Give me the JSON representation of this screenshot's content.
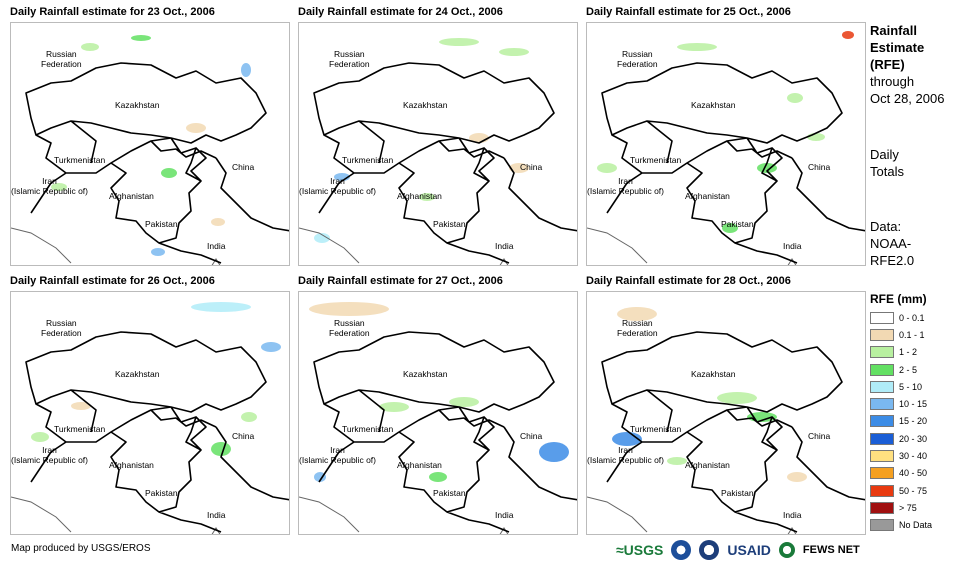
{
  "panels": [
    {
      "title": "Daily Rainfall estimate for 23 Oct., 2006"
    },
    {
      "title": "Daily Rainfall estimate for 24 Oct., 2006"
    },
    {
      "title": "Daily Rainfall estimate for 25 Oct., 2006"
    },
    {
      "title": "Daily Rainfall estimate for 26 Oct., 2006"
    },
    {
      "title": "Daily Rainfall estimate for 27 Oct., 2006"
    },
    {
      "title": "Daily Rainfall estimate for 28 Oct., 2006"
    }
  ],
  "map_labels": {
    "russia": "Russian\nFederation",
    "kazakhstan": "Kazakhstan",
    "turkmenistan": "Turkmenistan",
    "china": "China",
    "iran": "Iran\n(Islamic Republic of)",
    "afghanistan": "Afghanistan",
    "pakistan": "Pakistan",
    "india": "India"
  },
  "side": {
    "title_line1": "Rainfall",
    "title_line2": "Estimate",
    "title_line3": "(RFE)",
    "through": "through",
    "date": "Oct 28, 2006",
    "daily": "Daily",
    "totals": "Totals",
    "data_label": "Data:",
    "data_src1": "NOAA-",
    "data_src2": "RFE2.0"
  },
  "legend": {
    "title": "RFE (mm)",
    "items": [
      {
        "label": "0 - 0.1",
        "color": "#ffffff"
      },
      {
        "label": "0.1 - 1",
        "color": "#f2d9b3"
      },
      {
        "label": "1 - 2",
        "color": "#b8f0a0"
      },
      {
        "label": "2 - 5",
        "color": "#63e063"
      },
      {
        "label": "5 - 10",
        "color": "#b0ecf8"
      },
      {
        "label": "10 - 15",
        "color": "#7ab8f0"
      },
      {
        "label": "15 - 20",
        "color": "#3c8ce6"
      },
      {
        "label": "20 - 30",
        "color": "#1a5ed6"
      },
      {
        "label": "30 - 40",
        "color": "#ffe080"
      },
      {
        "label": "40 - 50",
        "color": "#f5a020"
      },
      {
        "label": "50 - 75",
        "color": "#e83a10"
      },
      {
        "label": "> 75",
        "color": "#a01010"
      },
      {
        "label": "No Data",
        "color": "#999999"
      }
    ]
  },
  "credit": "Map produced by USGS/EROS",
  "logos": {
    "usgs": "≈USGS",
    "usaid": "USAID",
    "fewsnet": "FEWS NET"
  }
}
